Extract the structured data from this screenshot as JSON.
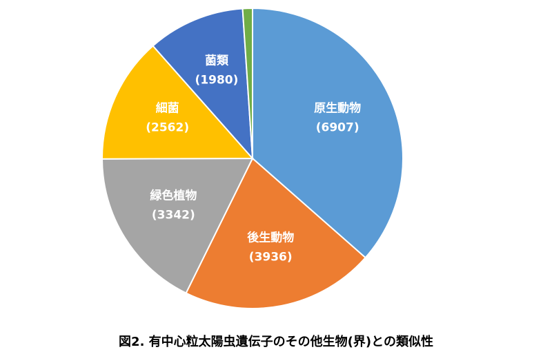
{
  "chart_data": {
    "type": "pie",
    "title": "",
    "caption": "図2. 有中心粒太陽虫遺伝子のその他生物(界)との類似性",
    "start_angle": "top, clockwise",
    "slices": [
      {
        "label": "原生動物",
        "value": 6907,
        "value_label": "(6907)",
        "color": "#5B9BD5"
      },
      {
        "label": "後生動物",
        "value": 3936,
        "value_label": "(3936)",
        "color": "#ED7D31"
      },
      {
        "label": "緑色植物",
        "value": 3342,
        "value_label": "(3342)",
        "color": "#A5A5A5"
      },
      {
        "label": "細菌",
        "value": 2562,
        "value_label": "(2562)",
        "color": "#FFC000"
      },
      {
        "label": "菌類",
        "value": 1980,
        "value_label": "(1980)",
        "color": "#4472C4"
      },
      {
        "label": "",
        "value": 200,
        "value_label": "",
        "color": "#70AD47"
      }
    ],
    "legend": "none"
  }
}
